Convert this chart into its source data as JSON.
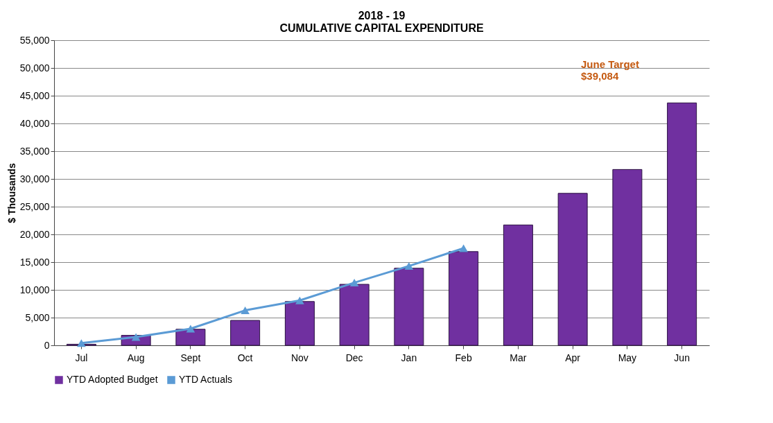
{
  "chart_data": {
    "type": "bar",
    "title": [
      "2018 - 19",
      "CUMULATIVE CAPITAL EXPENDITURE"
    ],
    "ylabel": "$ Thousands",
    "categories": [
      "Jul",
      "Aug",
      "Sept",
      "Oct",
      "Nov",
      "Dec",
      "Jan",
      "Feb",
      "Mar",
      "Apr",
      "May",
      "Jun"
    ],
    "series": [
      {
        "name": "YTD Adopted Budget",
        "color": "#7030a0",
        "values": [
          200,
          1800,
          2900,
          4500,
          7900,
          11000,
          13900,
          16900,
          21700,
          27400,
          31700,
          43700
        ]
      },
      {
        "name": "YTD Actuals",
        "type": "line",
        "color": "#5b9bd5",
        "marker": "triangle",
        "values": [
          400,
          1500,
          3000,
          6300,
          8100,
          11300,
          14300,
          17500,
          null,
          null,
          null,
          null
        ]
      }
    ],
    "ylim": [
      0,
      55000
    ],
    "yticks": [
      0,
      {
        "value": 5000,
        "label": "5,000"
      },
      {
        "value": 10000,
        "label": "10,000"
      },
      {
        "value": 15000,
        "label": "15,000"
      },
      {
        "value": 20000,
        "label": "20,000"
      },
      {
        "value": 25000,
        "label": "25,000"
      },
      {
        "value": 30000,
        "label": "30,000"
      },
      {
        "value": 35000,
        "label": "35,000"
      },
      {
        "value": 40000,
        "label": "40,000"
      },
      {
        "value": 45000,
        "label": "45,000"
      },
      {
        "value": 50000,
        "label": "50,000"
      },
      {
        "value": 55000,
        "label": "55,000"
      }
    ],
    "grid": "y",
    "legend": "bottom",
    "annotations": [
      "June Target\n$39,084"
    ]
  }
}
